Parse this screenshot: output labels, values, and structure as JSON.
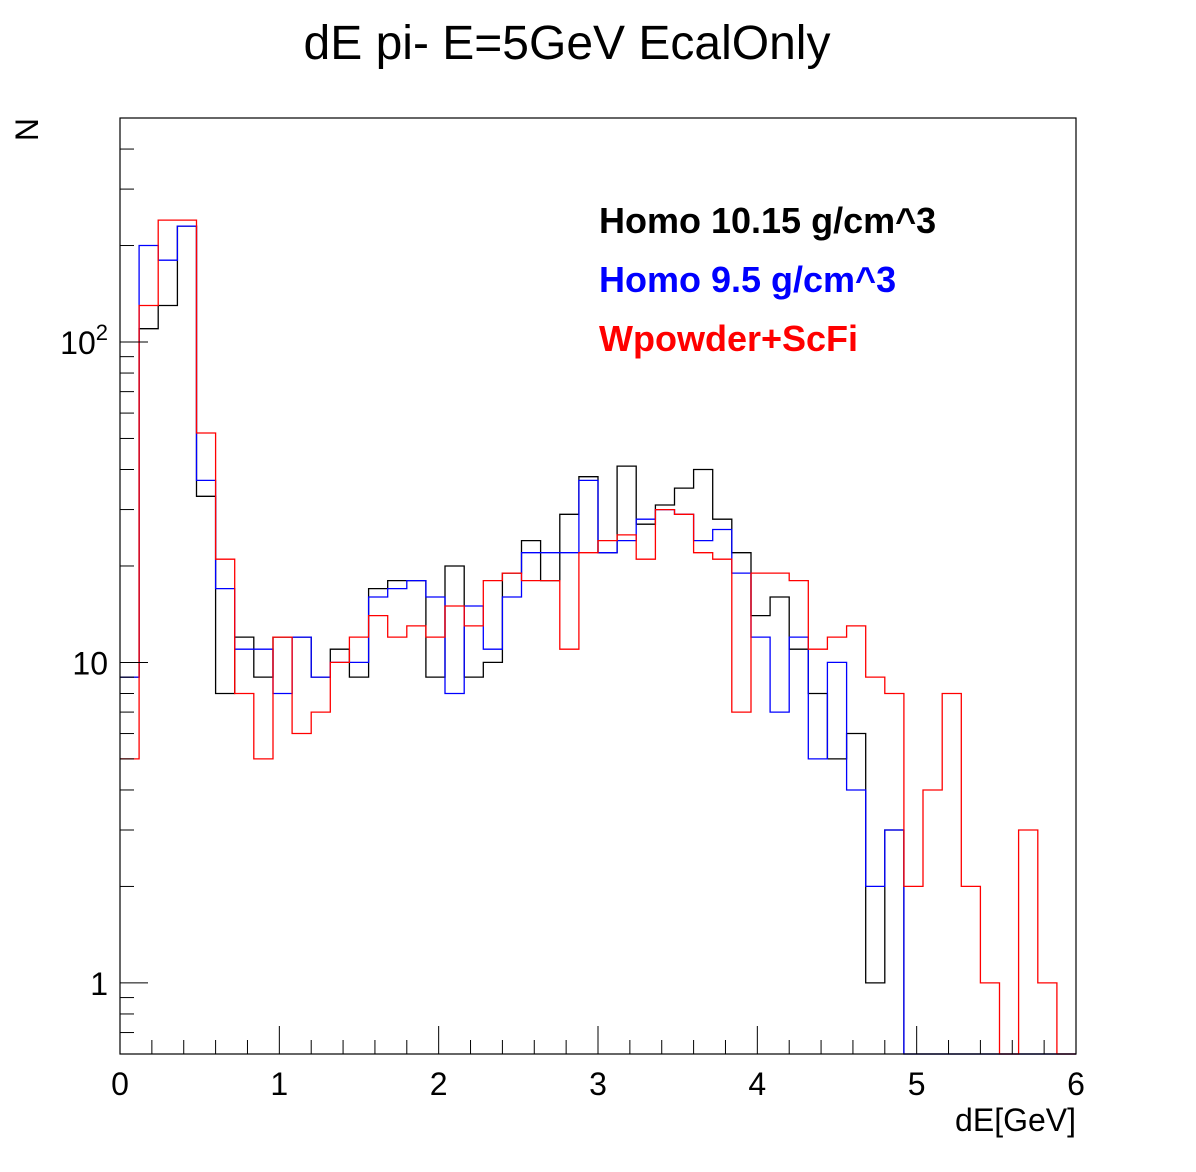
{
  "chart_data": {
    "type": "histogram",
    "title": "dE pi- E=5GeV EcalOnly",
    "xlabel": "dE[GeV]",
    "ylabel": "N",
    "xlim": [
      0,
      6
    ],
    "ylim": [
      0.6,
      500
    ],
    "yscale": "log",
    "grid": false,
    "legend_position": "top-right",
    "bin_width": 0.12,
    "x_ticks": [
      {
        "value": 0,
        "label": "0"
      },
      {
        "value": 1,
        "label": "1"
      },
      {
        "value": 2,
        "label": "2"
      },
      {
        "value": 3,
        "label": "3"
      },
      {
        "value": 4,
        "label": "4"
      },
      {
        "value": 5,
        "label": "5"
      },
      {
        "value": 6,
        "label": "6"
      }
    ],
    "y_ticks": [
      {
        "value": 1,
        "label": "1",
        "sup": ""
      },
      {
        "value": 10,
        "label": "10",
        "sup": ""
      },
      {
        "value": 100,
        "label": "10",
        "sup": "2"
      }
    ],
    "series": [
      {
        "name": "Homo 10.15 g/cm^3",
        "color": "#000000",
        "values": [
          9,
          110,
          130,
          230,
          33,
          8,
          12,
          9,
          12,
          12,
          9,
          11,
          9,
          17,
          18,
          18,
          9,
          20,
          9,
          10,
          19,
          24,
          18,
          29,
          38,
          22,
          41,
          27,
          31,
          35,
          40,
          28,
          22,
          14,
          16,
          11,
          8,
          5,
          6,
          1,
          3,
          0,
          0,
          0,
          0,
          0,
          0,
          0,
          0,
          0
        ]
      },
      {
        "name": "Homo 9.5 g/cm^3",
        "color": "#0000ff",
        "values": [
          9,
          200,
          180,
          230,
          37,
          17,
          11,
          11,
          8,
          12,
          9,
          10,
          10,
          16,
          17,
          18,
          16,
          8,
          15,
          11,
          16,
          22,
          22,
          22,
          37,
          22,
          24,
          28,
          30,
          29,
          24,
          26,
          19,
          12,
          7,
          12,
          5,
          10,
          4,
          2,
          3,
          0,
          0,
          0,
          0,
          0,
          0,
          0,
          0,
          0
        ]
      },
      {
        "name": "Wpowder+ScFi",
        "color": "#ff0000",
        "values": [
          5,
          130,
          240,
          240,
          52,
          21,
          8,
          5,
          12,
          6,
          7,
          10,
          12,
          14,
          12,
          13,
          12,
          15,
          13,
          18,
          19,
          18,
          18,
          11,
          22,
          24,
          25,
          21,
          30,
          29,
          22,
          21,
          7,
          19,
          19,
          18,
          11,
          12,
          13,
          9,
          8,
          2,
          4,
          8,
          2,
          1,
          0,
          3,
          1,
          0
        ]
      }
    ]
  }
}
